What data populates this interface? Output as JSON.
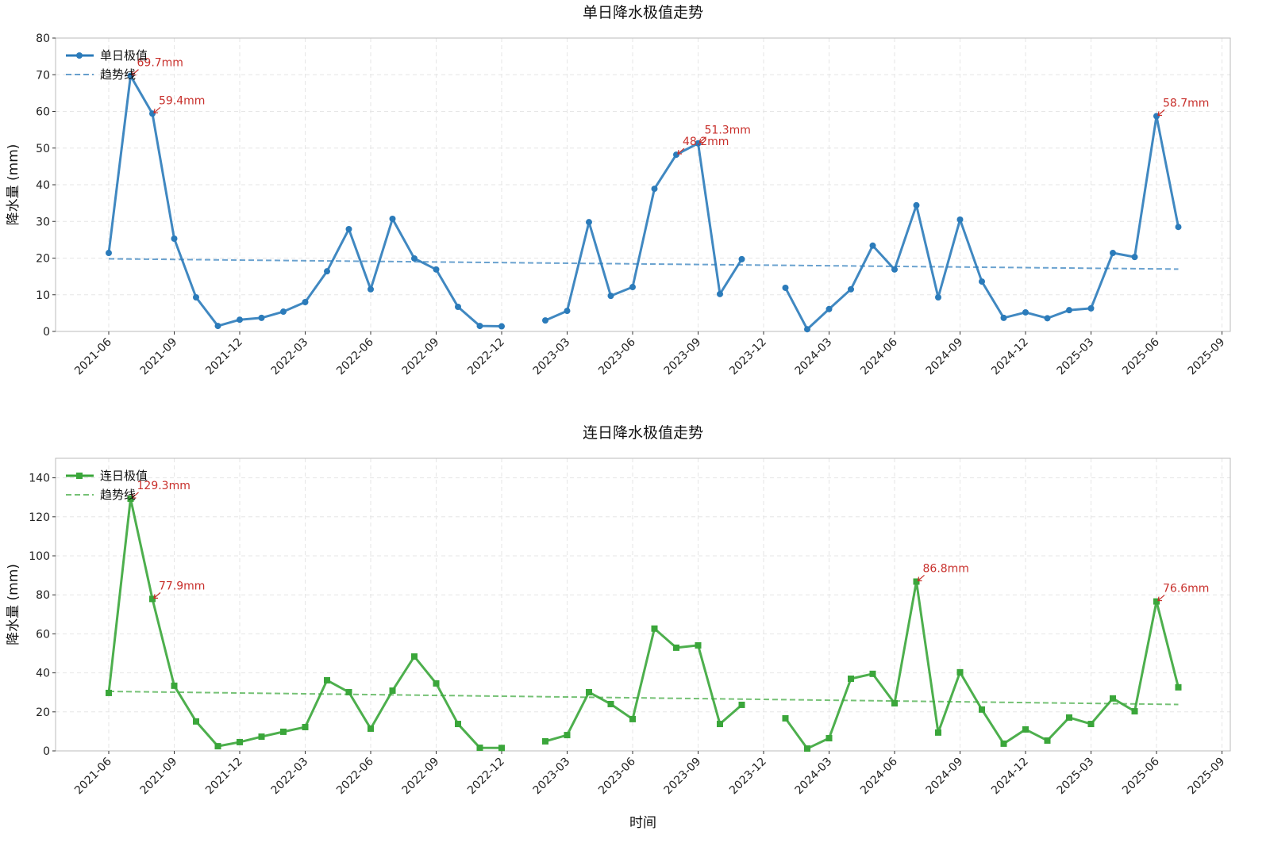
{
  "chart_data": [
    {
      "type": "line",
      "title": "单日降水极值走势",
      "xlabel": "",
      "ylabel": "降水量 (mm)",
      "ylim": [
        0,
        80
      ],
      "yticks": [
        0,
        10,
        20,
        30,
        40,
        50,
        60,
        70,
        80
      ],
      "xticks": [
        "2021-06",
        "2021-09",
        "2021-12",
        "2022-03",
        "2022-06",
        "2022-09",
        "2022-12",
        "2023-03",
        "2023-06",
        "2023-09",
        "2023-12",
        "2024-03",
        "2024-06",
        "2024-09",
        "2024-12",
        "2025-03",
        "2025-06",
        "2025-09"
      ],
      "grid": true,
      "legend": "top-left",
      "color": "#2b7bba",
      "marker": "circle",
      "x": [
        "2021-06",
        "2021-07",
        "2021-08",
        "2021-09",
        "2021-10",
        "2021-11",
        "2021-12",
        "2022-01",
        "2022-02",
        "2022-03",
        "2022-04",
        "2022-05",
        "2022-06",
        "2022-07",
        "2022-08",
        "2022-09",
        "2022-10",
        "2022-11",
        "2022-12",
        "2023-01",
        "2023-02",
        "2023-03",
        "2023-04",
        "2023-05",
        "2023-06",
        "2023-07",
        "2023-08",
        "2023-09",
        "2023-10",
        "2023-11",
        "2023-12",
        "2024-01",
        "2024-02",
        "2024-03",
        "2024-04",
        "2024-05",
        "2024-06",
        "2024-07",
        "2024-08",
        "2024-09",
        "2024-10",
        "2024-11",
        "2024-12",
        "2025-01",
        "2025-02",
        "2025-03",
        "2025-04",
        "2025-05",
        "2025-06",
        "2025-07"
      ],
      "series": [
        {
          "name": "单日极值",
          "values": [
            21.4,
            69.7,
            59.4,
            25.3,
            9.3,
            1.5,
            3.2,
            3.7,
            5.4,
            8.0,
            16.4,
            27.9,
            11.5,
            30.7,
            19.9,
            16.9,
            6.7,
            1.5,
            1.4,
            null,
            3.0,
            5.6,
            29.8,
            9.7,
            12.1,
            38.9,
            48.2,
            51.3,
            10.2,
            19.7,
            null,
            11.9,
            0.6,
            6.1,
            11.5,
            23.4,
            16.9,
            34.4,
            9.3,
            30.5,
            13.6,
            3.7,
            5.2,
            3.6,
            5.8,
            6.3,
            21.4,
            20.3,
            58.7,
            28.5
          ]
        },
        {
          "name": "趋势线",
          "style": "dashed",
          "start": [
            "2021-06",
            19.8
          ],
          "end": [
            "2025-07",
            17.0
          ]
        }
      ],
      "annotations": [
        {
          "x": "2021-07",
          "y": 69.7,
          "text": "69.7mm"
        },
        {
          "x": "2021-08",
          "y": 59.4,
          "text": "59.4mm"
        },
        {
          "x": "2023-08",
          "y": 48.2,
          "text": "48.2mm"
        },
        {
          "x": "2023-09",
          "y": 51.3,
          "text": "51.3mm"
        },
        {
          "x": "2025-06",
          "y": 58.7,
          "text": "58.7mm"
        }
      ]
    },
    {
      "type": "line",
      "title": "连日降水极值走势",
      "xlabel": "时间",
      "ylabel": "降水量 (mm)",
      "ylim": [
        0,
        150
      ],
      "yticks": [
        0,
        20,
        40,
        60,
        80,
        100,
        120,
        140
      ],
      "xticks": [
        "2021-06",
        "2021-09",
        "2021-12",
        "2022-03",
        "2022-06",
        "2022-09",
        "2022-12",
        "2023-03",
        "2023-06",
        "2023-09",
        "2023-12",
        "2024-03",
        "2024-06",
        "2024-09",
        "2024-12",
        "2025-03",
        "2025-06",
        "2025-09"
      ],
      "grid": true,
      "legend": "top-left",
      "color": "#3aa63a",
      "marker": "square",
      "x": [
        "2021-06",
        "2021-07",
        "2021-08",
        "2021-09",
        "2021-10",
        "2021-11",
        "2021-12",
        "2022-01",
        "2022-02",
        "2022-03",
        "2022-04",
        "2022-05",
        "2022-06",
        "2022-07",
        "2022-08",
        "2022-09",
        "2022-10",
        "2022-11",
        "2022-12",
        "2023-01",
        "2023-02",
        "2023-03",
        "2023-04",
        "2023-05",
        "2023-06",
        "2023-07",
        "2023-08",
        "2023-09",
        "2023-10",
        "2023-11",
        "2023-12",
        "2024-01",
        "2024-02",
        "2024-03",
        "2024-04",
        "2024-05",
        "2024-06",
        "2024-07",
        "2024-08",
        "2024-09",
        "2024-10",
        "2024-11",
        "2024-12",
        "2025-01",
        "2025-02",
        "2025-03",
        "2025-04",
        "2025-05",
        "2025-06",
        "2025-07"
      ],
      "series": [
        {
          "name": "连日极值",
          "values": [
            29.7,
            129.3,
            77.9,
            33.4,
            15.1,
            2.4,
            4.5,
            7.3,
            9.8,
            12.2,
            36.2,
            30.1,
            11.4,
            30.9,
            48.4,
            34.6,
            13.8,
            1.6,
            1.5,
            null,
            4.9,
            8.1,
            30.1,
            24.0,
            16.3,
            62.7,
            52.9,
            54.1,
            13.8,
            23.6,
            null,
            16.7,
            1.2,
            6.5,
            37.0,
            39.5,
            24.4,
            86.8,
            9.4,
            40.3,
            21.2,
            3.7,
            11.0,
            5.3,
            17.1,
            13.8,
            26.9,
            20.3,
            76.6,
            32.6
          ]
        },
        {
          "name": "趋势线",
          "style": "dashed",
          "start": [
            "2021-06",
            30.5
          ],
          "end": [
            "2025-07",
            23.8
          ]
        }
      ],
      "annotations": [
        {
          "x": "2021-07",
          "y": 129.3,
          "text": "129.3mm"
        },
        {
          "x": "2021-08",
          "y": 77.9,
          "text": "77.9mm"
        },
        {
          "x": "2024-07",
          "y": 86.8,
          "text": "86.8mm"
        },
        {
          "x": "2025-06",
          "y": 76.6,
          "text": "76.6mm"
        }
      ]
    }
  ],
  "annotation_color": "#c8302c"
}
